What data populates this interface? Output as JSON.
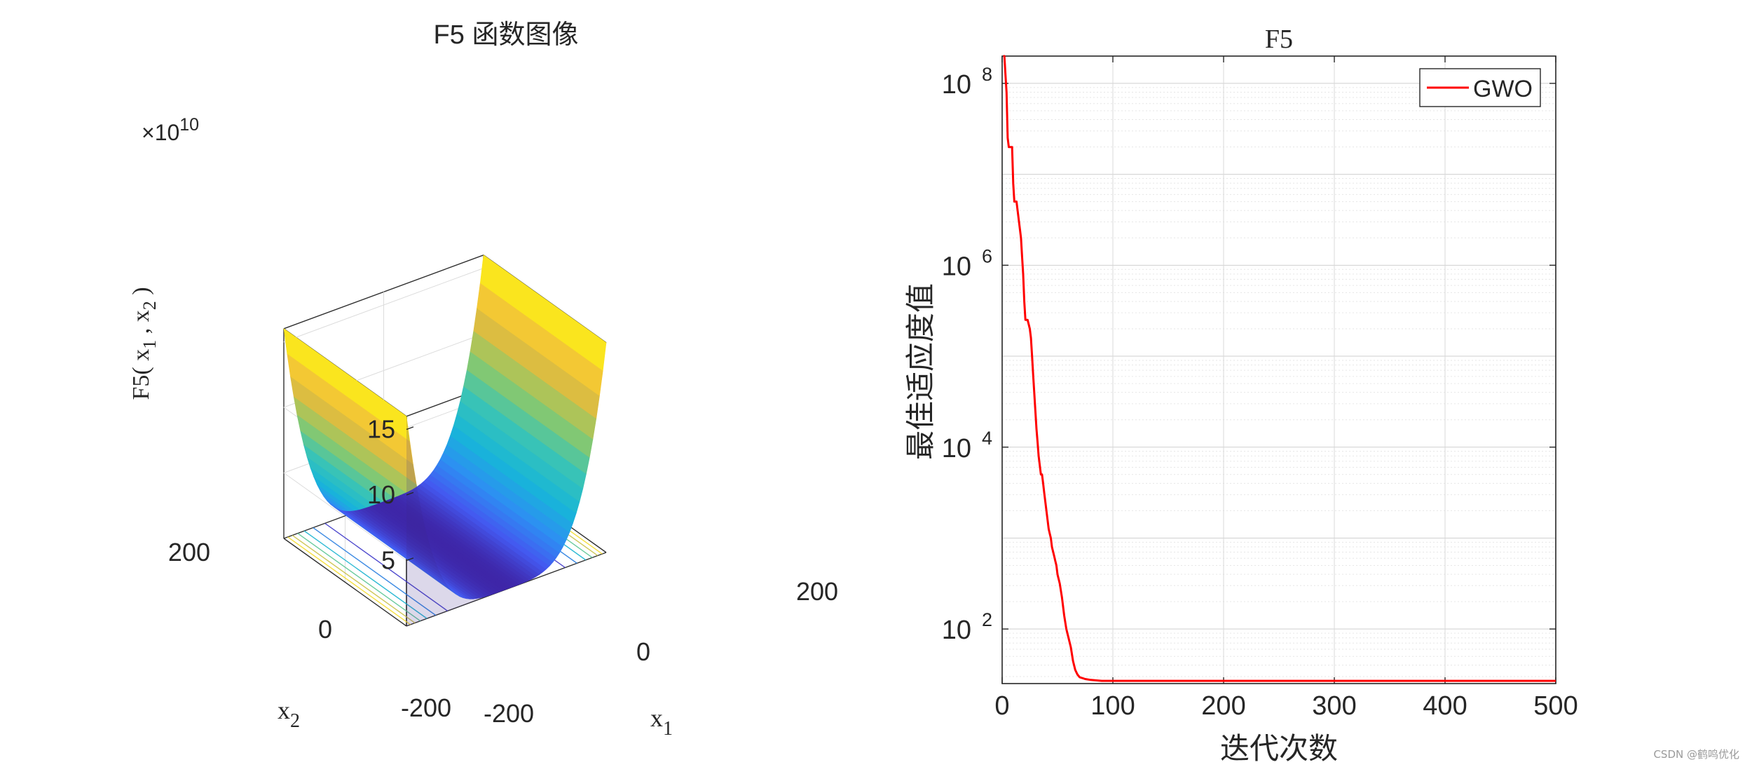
{
  "colors": {
    "curve": "#ff0000",
    "axis": "#262626",
    "grid": "#d9d9d9",
    "box": "#303030"
  },
  "watermark": "CSDN @鹤鸣优化",
  "chart_data": [
    {
      "type": "surface3d",
      "title": "F5 函数图像",
      "zlabel_main": "F5( x",
      "zlabel_sub1": "1",
      "zlabel_mid": " , x",
      "zlabel_sub2": "2",
      "zlabel_end": " )",
      "xlabel_main": "x",
      "xlabel_sub": "1",
      "ylabel_main": "x",
      "ylabel_sub": "2",
      "exponent_prefix": "×10",
      "exponent_power": "10",
      "xlim": [
        -200,
        200
      ],
      "ylim": [
        -200,
        200
      ],
      "zlim": [
        0,
        16
      ],
      "x_ticks": [
        "-200",
        "0",
        "200"
      ],
      "y_ticks": [
        "-200",
        "0",
        "200"
      ],
      "z_ticks": [
        "5",
        "10",
        "15"
      ],
      "z_tick_values": [
        5,
        10,
        15
      ],
      "z_at_x_edge": 16,
      "colormap": "parula"
    },
    {
      "type": "line",
      "title": "F5",
      "xlabel": "迭代次数",
      "ylabel": "最佳适应度值",
      "xlim": [
        0,
        500
      ],
      "ylim_log10": [
        1.4,
        8.3
      ],
      "yscale": "log",
      "x_ticks": [
        0,
        100,
        200,
        300,
        400,
        500
      ],
      "x_tick_labels": [
        "0",
        "100",
        "200",
        "300",
        "400",
        "500"
      ],
      "y_tick_base": "10",
      "y_tick_exps": [
        "2",
        "4",
        "6",
        "8"
      ],
      "y_tick_exp_values": [
        2,
        4,
        6,
        8
      ],
      "grid": true,
      "legend": "top-right",
      "series": [
        {
          "name": "GWO",
          "color": "#ff0000",
          "x": [
            1,
            2,
            3,
            4,
            5,
            6,
            7,
            8,
            9,
            10,
            11,
            12,
            13,
            14,
            15,
            16,
            17,
            18,
            19,
            20,
            21,
            22,
            23,
            24,
            25,
            26,
            27,
            28,
            29,
            30,
            31,
            32,
            33,
            34,
            35,
            36,
            37,
            38,
            39,
            40,
            41,
            42,
            43,
            44,
            45,
            46,
            47,
            48,
            49,
            50,
            52,
            54,
            56,
            58,
            60,
            62,
            64,
            66,
            68,
            70,
            75,
            80,
            90,
            100,
            150,
            200,
            300,
            400,
            500
          ],
          "log10_y": [
            8.3,
            8.3,
            8.1,
            7.9,
            7.4,
            7.3,
            7.3,
            7.3,
            7.3,
            6.9,
            6.7,
            6.7,
            6.7,
            6.6,
            6.5,
            6.4,
            6.3,
            6.1,
            5.9,
            5.6,
            5.4,
            5.4,
            5.4,
            5.35,
            5.3,
            5.2,
            5.0,
            4.8,
            4.6,
            4.4,
            4.2,
            4.05,
            3.9,
            3.8,
            3.7,
            3.7,
            3.6,
            3.5,
            3.4,
            3.3,
            3.2,
            3.1,
            3.05,
            3.0,
            2.9,
            2.85,
            2.8,
            2.75,
            2.7,
            2.6,
            2.5,
            2.35,
            2.15,
            2.0,
            1.9,
            1.8,
            1.65,
            1.55,
            1.5,
            1.47,
            1.45,
            1.44,
            1.43,
            1.43,
            1.43,
            1.43,
            1.43,
            1.43,
            1.43
          ]
        }
      ]
    }
  ]
}
